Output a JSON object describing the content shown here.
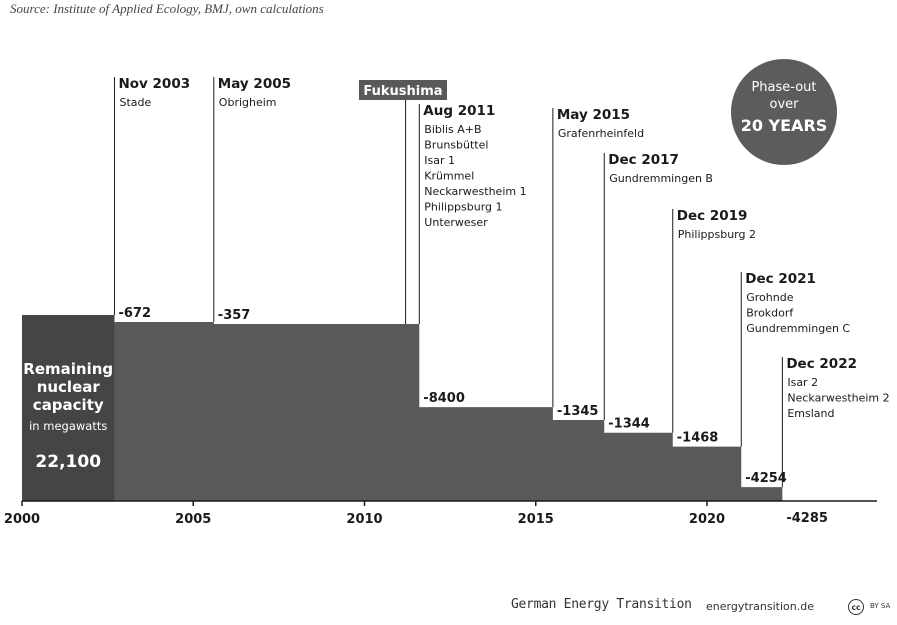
{
  "source": "Source: Institute of Applied Ecology, BMJ, own calculations",
  "chart_data": {
    "type": "area",
    "title": "",
    "xlabel": "",
    "ylabel": "",
    "xlim": [
      2000,
      2025
    ],
    "x_ticks": [
      2000,
      2005,
      2010,
      2015,
      2020
    ],
    "start_capacity_mw": 22100,
    "start_label": {
      "title": "Remaining nuclear capacity",
      "unit": "in megawatts",
      "value": "22,100"
    },
    "events": [
      {
        "date": "Nov 2003",
        "x": 2002.7,
        "plants": [
          "Stade"
        ],
        "delta": -672,
        "delta_label": "-672"
      },
      {
        "date": "May 2005",
        "x": 2005.6,
        "plants": [
          "Obrigheim"
        ],
        "delta": -357,
        "delta_label": "-357"
      },
      {
        "date": "Aug 2011",
        "x": 2011.6,
        "plants": [
          "Biblis A+B",
          "Brunsbüttel",
          "Isar 1",
          "Krümmel",
          "Neckarwestheim 1",
          "Philippsburg 1",
          "Unterweser"
        ],
        "delta": -8400,
        "delta_label": "-8400"
      },
      {
        "date": "May 2015",
        "x": 2015.5,
        "plants": [
          "Grafenrheinfeld"
        ],
        "delta": -1345,
        "delta_label": "-1345"
      },
      {
        "date": "Dec 2017",
        "x": 2017.0,
        "plants": [
          "Gundremmingen B"
        ],
        "delta": -1344,
        "delta_label": "-1344"
      },
      {
        "date": "Dec 2019",
        "x": 2019.0,
        "plants": [
          "Philippsburg 2"
        ],
        "delta": -1468,
        "delta_label": "-1468"
      },
      {
        "date": "Dec 2021",
        "x": 2021.0,
        "plants": [
          "Grohnde",
          "Brokdorf",
          "Gundremmingen C"
        ],
        "delta": -4254,
        "delta_label": "-4254"
      },
      {
        "date": "Dec 2022",
        "x": 2022.2,
        "plants": [
          "Isar 2",
          "Neckarwestheim 2",
          "Emsland"
        ],
        "delta": -4285,
        "delta_label": "-4285"
      }
    ],
    "annotations": {
      "fukushima": {
        "label": "Fukushima",
        "x": 2011.2
      },
      "badge": [
        "Phase-out",
        "over",
        "20 YEARS"
      ]
    }
  },
  "footer": {
    "brand": "German Energy Transition",
    "url": "energytransition.de",
    "cc_icon": "cc",
    "license": "BY SA"
  },
  "colors": {
    "area": "#595959",
    "start_block": "#454545",
    "badge": "#5c5c5c",
    "fukushima_box": "#595959"
  }
}
